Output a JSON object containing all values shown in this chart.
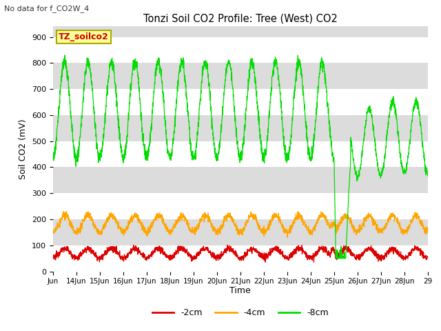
{
  "title": "Tonzi Soil CO2 Profile: Tree (West) CO2",
  "subtitle": "No data for f_CO2W_4",
  "ylabel": "Soil CO2 (mV)",
  "xlabel": "Time",
  "legend_label": "TZ_soilco2",
  "series_labels": [
    "-2cm",
    "-4cm",
    "-8cm"
  ],
  "series_colors": [
    "#dd0000",
    "#ffa500",
    "#00dd00"
  ],
  "ylim": [
    0,
    940
  ],
  "yticks": [
    0,
    100,
    200,
    300,
    400,
    500,
    600,
    700,
    800,
    900
  ],
  "bg_color": "#ffffff",
  "band_colors": [
    "#ffffff",
    "#dcdcdc"
  ],
  "legend_box_color": "#ffff99",
  "legend_box_edge": "#aaaa00",
  "figwidth": 6.4,
  "figheight": 4.8,
  "dpi": 100
}
